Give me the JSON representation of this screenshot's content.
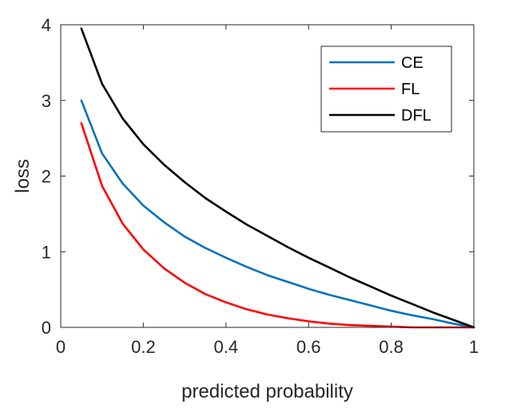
{
  "chart_data": {
    "type": "line",
    "xlabel": "predicted probability",
    "ylabel": "loss",
    "xlim": [
      0,
      1
    ],
    "ylim": [
      0,
      4
    ],
    "xticks": [
      "0",
      "0.2",
      "0.4",
      "0.6",
      "0.8",
      "1"
    ],
    "yticks": [
      "0",
      "1",
      "2",
      "3",
      "4"
    ],
    "legend_position": "top-right",
    "grid": false,
    "x": [
      0.05,
      0.1,
      0.15,
      0.2,
      0.25,
      0.3,
      0.35,
      0.4,
      0.45,
      0.5,
      0.55,
      0.6,
      0.65,
      0.7,
      0.75,
      0.8,
      0.85,
      0.9,
      0.95,
      1.0
    ],
    "series": [
      {
        "name": "CE",
        "color": "#0072BD",
        "values": [
          3.0,
          2.3,
          1.9,
          1.61,
          1.39,
          1.2,
          1.05,
          0.92,
          0.8,
          0.69,
          0.6,
          0.51,
          0.43,
          0.36,
          0.29,
          0.22,
          0.16,
          0.11,
          0.05,
          0.0
        ]
      },
      {
        "name": "FL",
        "color": "#FF0000",
        "values": [
          2.7,
          1.87,
          1.37,
          1.03,
          0.78,
          0.59,
          0.44,
          0.33,
          0.24,
          0.17,
          0.12,
          0.08,
          0.05,
          0.03,
          0.02,
          0.01,
          0.0,
          0.0,
          0.0,
          0.0
        ]
      },
      {
        "name": "DFL",
        "color": "#000000",
        "values": [
          3.95,
          3.22,
          2.76,
          2.42,
          2.15,
          1.92,
          1.71,
          1.53,
          1.36,
          1.21,
          1.06,
          0.92,
          0.79,
          0.66,
          0.54,
          0.42,
          0.31,
          0.2,
          0.1,
          0.0
        ]
      }
    ]
  }
}
